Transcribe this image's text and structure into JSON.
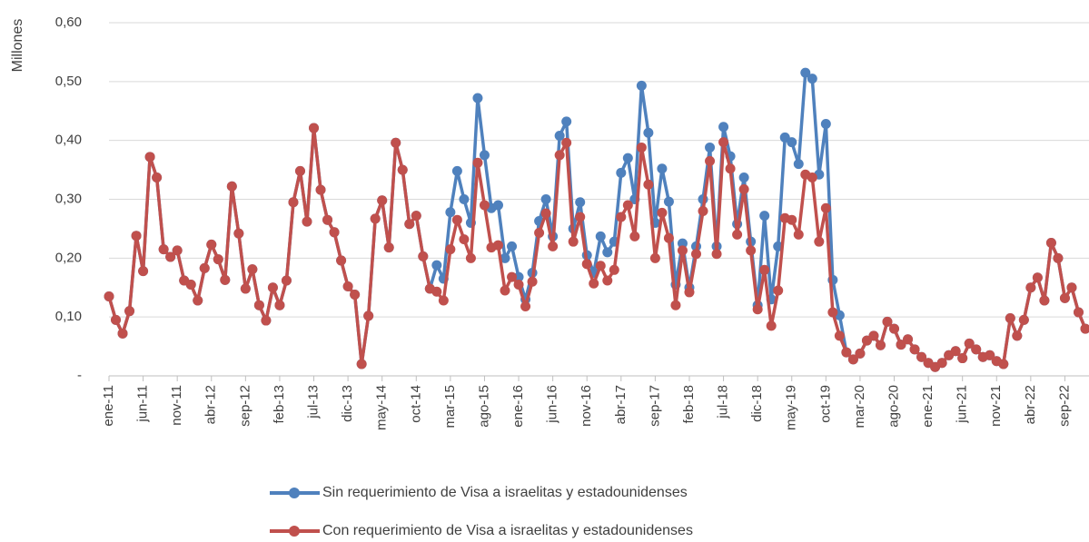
{
  "chart_data": {
    "type": "line",
    "y_axis_label": "Millones",
    "categories": [
      "ene-11",
      null,
      null,
      null,
      null,
      "jun-11",
      null,
      null,
      null,
      null,
      "nov-11",
      null,
      null,
      null,
      null,
      "abr-12",
      null,
      null,
      null,
      null,
      "sep-12",
      null,
      null,
      null,
      null,
      "feb-13",
      null,
      null,
      null,
      null,
      "jul-13",
      null,
      null,
      null,
      null,
      "dic-13",
      null,
      null,
      null,
      null,
      "may-14",
      null,
      null,
      null,
      null,
      "oct-14",
      null,
      null,
      null,
      null,
      "mar-15",
      null,
      null,
      null,
      null,
      "ago-15",
      null,
      null,
      null,
      null,
      "ene-16",
      null,
      null,
      null,
      null,
      "jun-16",
      null,
      null,
      null,
      null,
      "nov-16",
      null,
      null,
      null,
      null,
      "abr-17",
      null,
      null,
      null,
      null,
      "sep-17",
      null,
      null,
      null,
      null,
      "feb-18",
      null,
      null,
      null,
      null,
      "jul-18",
      null,
      null,
      null,
      null,
      "dic-18",
      null,
      null,
      null,
      null,
      "may-19",
      null,
      null,
      null,
      null,
      "oct-19",
      null,
      null,
      null,
      null,
      "mar-20",
      null,
      null,
      null,
      null,
      "ago-20",
      null,
      null,
      null,
      null,
      "ene-21",
      null,
      null,
      null,
      null,
      "jun-21",
      null,
      null,
      null,
      null,
      "nov-21",
      null,
      null,
      null,
      null,
      "abr-22",
      null,
      null,
      null,
      null,
      "sep-22",
      null,
      null,
      null
    ],
    "series": [
      {
        "name": "Sin requerimiento de Visa a israelitas y estadounidenses",
        "color": "#4f81bd",
        "values": [
          0.135,
          0.095,
          0.072,
          0.11,
          0.238,
          0.178,
          0.372,
          0.337,
          0.215,
          0.202,
          0.213,
          0.162,
          0.155,
          0.128,
          0.183,
          0.223,
          0.198,
          0.163,
          0.322,
          0.242,
          0.148,
          0.181,
          0.12,
          0.094,
          0.15,
          0.12,
          0.162,
          0.295,
          0.348,
          0.262,
          0.421,
          0.316,
          0.265,
          0.244,
          0.196,
          0.152,
          0.138,
          0.02,
          0.102,
          0.267,
          0.298,
          0.218,
          0.396,
          0.35,
          0.258,
          0.272,
          0.203,
          0.148,
          0.188,
          0.165,
          0.278,
          0.348,
          0.3,
          0.26,
          0.472,
          0.375,
          0.285,
          0.29,
          0.2,
          0.22,
          0.168,
          0.13,
          0.175,
          0.263,
          0.3,
          0.237,
          0.408,
          0.432,
          0.25,
          0.295,
          0.205,
          0.175,
          0.237,
          0.21,
          0.228,
          0.345,
          0.37,
          0.3,
          0.493,
          0.413,
          0.26,
          0.352,
          0.296,
          0.155,
          0.225,
          0.15,
          0.22,
          0.3,
          0.388,
          0.22,
          0.423,
          0.373,
          0.258,
          0.337,
          0.228,
          0.12,
          0.272,
          0.13,
          0.22,
          0.405,
          0.397,
          0.36,
          0.515,
          0.505,
          0.342,
          0.428,
          0.163,
          0.103,
          0.04,
          0.028,
          0.038,
          0.06,
          0.068,
          0.052,
          0.092,
          0.08,
          0.053,
          0.062,
          0.045,
          0.032,
          0.022,
          0.015,
          0.022,
          0.035,
          0.042,
          0.03,
          0.055,
          0.045,
          0.032,
          0.035,
          0.025,
          0.02,
          0.098,
          0.068,
          0.095,
          0.15,
          0.167,
          0.128,
          0.226,
          0.2,
          0.132,
          0.15,
          0.108,
          0.08
        ]
      },
      {
        "name": "Con requerimiento de Visa a  israelitas y estadounidenses",
        "color": "#c0504d",
        "values": [
          0.135,
          0.095,
          0.072,
          0.11,
          0.238,
          0.178,
          0.372,
          0.337,
          0.215,
          0.202,
          0.213,
          0.162,
          0.155,
          0.128,
          0.183,
          0.223,
          0.198,
          0.163,
          0.322,
          0.242,
          0.148,
          0.181,
          0.12,
          0.094,
          0.15,
          0.12,
          0.162,
          0.295,
          0.348,
          0.262,
          0.421,
          0.316,
          0.265,
          0.244,
          0.196,
          0.152,
          0.138,
          0.02,
          0.102,
          0.267,
          0.298,
          0.218,
          0.396,
          0.35,
          0.258,
          0.272,
          0.203,
          0.148,
          0.143,
          0.128,
          0.215,
          0.265,
          0.232,
          0.2,
          0.362,
          0.29,
          0.218,
          0.222,
          0.145,
          0.168,
          0.155,
          0.118,
          0.16,
          0.243,
          0.276,
          0.22,
          0.375,
          0.396,
          0.228,
          0.27,
          0.19,
          0.157,
          0.187,
          0.162,
          0.18,
          0.27,
          0.29,
          0.237,
          0.388,
          0.325,
          0.2,
          0.277,
          0.234,
          0.12,
          0.213,
          0.142,
          0.207,
          0.28,
          0.365,
          0.207,
          0.397,
          0.352,
          0.24,
          0.317,
          0.213,
          0.113,
          0.18,
          0.085,
          0.145,
          0.268,
          0.265,
          0.24,
          0.342,
          0.337,
          0.228,
          0.285,
          0.108,
          0.068,
          0.04,
          0.028,
          0.038,
          0.06,
          0.068,
          0.052,
          0.092,
          0.08,
          0.053,
          0.062,
          0.045,
          0.032,
          0.022,
          0.015,
          0.022,
          0.035,
          0.042,
          0.03,
          0.055,
          0.045,
          0.032,
          0.035,
          0.025,
          0.02,
          0.098,
          0.068,
          0.095,
          0.15,
          0.167,
          0.128,
          0.226,
          0.2,
          0.132,
          0.15,
          0.108,
          0.08
        ]
      }
    ],
    "ylim": [
      0,
      0.6
    ],
    "yticks": [
      {
        "value": 0,
        "label": "-"
      },
      {
        "value": 0.1,
        "label": "0,10"
      },
      {
        "value": 0.2,
        "label": "0,20"
      },
      {
        "value": 0.3,
        "label": "0,30"
      },
      {
        "value": 0.4,
        "label": "0,40"
      },
      {
        "value": 0.5,
        "label": "0,50"
      },
      {
        "value": 0.6,
        "label": "0,60"
      }
    ],
    "grid": true,
    "legend": "bottom"
  }
}
